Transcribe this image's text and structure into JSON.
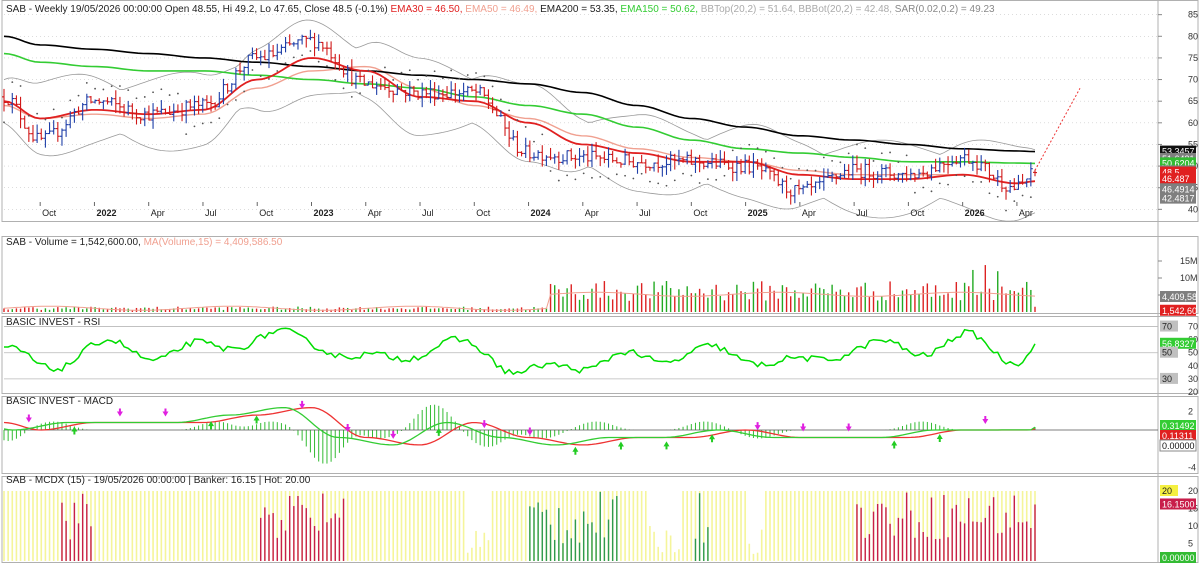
{
  "colors": {
    "background": "#ffffff",
    "grid": "#c8c8c8",
    "up_bar": "#1f3fa8",
    "down_bar": "#d01818",
    "ema30": "#e02020",
    "ema50": "#f0a090",
    "ema200": "#000000",
    "ema150": "#33cc33",
    "bollinger": "#9a9a9a",
    "sar": "#555555",
    "projection": "#ee3333",
    "vol_up": "#22aa22",
    "vol_down": "#dd2222",
    "vol_ma": "#f0a090",
    "rsi": "#00dd00",
    "macd": "#33cc33",
    "signal": "#ee3333",
    "macd_hist": "#33bb33",
    "arrow_buy": "#22cc22",
    "arrow_sell": "#e020e0",
    "mcdx_yellow": "#f5f59a",
    "mcdx_red": "#c81e4a",
    "mcdx_green": "#2e9a4e",
    "badge_gray": "#7f7f7f"
  },
  "price_panel": {
    "header": {
      "main": "SAB - Weekly 19/05/2026 00:00:00 Open 48.55, Hi 49.2, Lo 47.65, Close 48.5 (-0.1%) ",
      "ema30": "EMA30 = 46.50,",
      "ema50": " EMA50 = 46.49,",
      "ema200": " EMA200 = 53.35,",
      "ema150": " EMA150 = 50.62,",
      "bbtop": " BBTop(20,2) = 51.64,",
      "bbbot": " BBBot(20,2) = 42.48,",
      "sar": " SAR(0.02,0.2) = 49.23"
    },
    "y_ticks": [
      "85",
      "80",
      "75",
      "70",
      "65",
      "60",
      "55",
      "50",
      "45",
      "40"
    ],
    "x_labels": [
      "Oct",
      "2022",
      "Apr",
      "Jul",
      "Oct",
      "2023",
      "Apr",
      "Jul",
      "Oct",
      "2024",
      "Apr",
      "Jul",
      "Oct",
      "2025",
      "Apr",
      "Jul",
      "Oct",
      "2026",
      "Apr"
    ],
    "badges": [
      "53.3457",
      "51.6431",
      "50.6204",
      "49.2296",
      "48.5",
      "46.487",
      "46.4914",
      "42.4817"
    ]
  },
  "volume_panel": {
    "header": {
      "main": "SAB - Volume = 1,542,600.00, ",
      "ma": "MA(Volume,15) = 4,409,586.50"
    },
    "y_ticks": [
      "15M",
      "10M",
      "5M"
    ],
    "badges": [
      "4,409,58",
      "1,542,60"
    ]
  },
  "rsi_panel": {
    "header": "BASIC INVEST - RSI",
    "y_ticks": [
      "70",
      "60",
      "50",
      "40",
      "30",
      "20"
    ],
    "badges": [
      "70",
      "56.8327",
      "50",
      "30"
    ]
  },
  "macd_panel": {
    "header": "BASIC INVEST - MACD",
    "y_ticks": [
      "2",
      "0",
      "-2",
      "-4"
    ],
    "badges": [
      "0.31492",
      "0.11311",
      "0.00000"
    ]
  },
  "mcdx_panel": {
    "header": "SAB - MCDX (15) - 19/05/2026 00:00:00 | Banker: 16.15 | Hot: 20.00",
    "y_ticks": [
      "20",
      "15",
      "10",
      "5"
    ],
    "badges": [
      "20",
      "16.1500",
      "0.00000"
    ]
  },
  "chart_data": {
    "type": "candlestick",
    "ticker": "SAB",
    "timeframe": "Weekly",
    "last_bar": {
      "date": "19/05/2026",
      "open": 48.55,
      "high": 49.2,
      "low": 47.65,
      "close": 48.5,
      "change_pct": -0.1
    },
    "x_range": [
      "2021-08",
      "2026-05"
    ],
    "ylim": [
      38,
      87
    ],
    "anchors": {
      "dates": [
        "2021-08",
        "2021-10",
        "2022-01",
        "2022-04",
        "2022-07",
        "2022-10",
        "2023-01",
        "2023-04",
        "2023-07",
        "2023-10",
        "2024-01",
        "2024-04",
        "2024-07",
        "2024-10",
        "2025-01",
        "2025-04",
        "2025-07",
        "2025-10",
        "2026-01",
        "2026-04",
        "2026-05"
      ],
      "close": [
        66,
        56,
        65,
        62,
        64,
        75,
        79,
        69,
        67,
        67,
        53,
        52,
        51,
        51,
        50,
        44,
        49,
        48,
        52,
        45,
        48.5
      ],
      "ema30": [
        65,
        61,
        63,
        62,
        63,
        70,
        75,
        72,
        66,
        65,
        60,
        55,
        53,
        51,
        51,
        48,
        47,
        47,
        48,
        46,
        46.5
      ],
      "ema50": [
        64,
        61,
        62,
        61,
        62,
        68,
        72,
        73,
        68,
        64,
        61,
        57,
        54,
        52,
        51,
        49,
        48,
        48,
        48,
        46,
        46.49
      ],
      "ema200": [
        80,
        78,
        77,
        76,
        75,
        74,
        73,
        72,
        71,
        70,
        69,
        67,
        64,
        61,
        59,
        57,
        56,
        55,
        54,
        53.5,
        53.35
      ],
      "ema150": [
        76,
        74,
        73,
        72,
        72,
        71,
        70,
        69,
        68,
        66,
        64,
        62,
        59,
        56,
        54,
        53,
        52,
        51,
        51,
        50.7,
        50.62
      ]
    },
    "indicators": {
      "ema30": 46.5,
      "ema50": 46.49,
      "ema200": 53.35,
      "ema150": 50.62,
      "bb_top": 51.64,
      "bb_bot": 42.48,
      "sar": 49.23,
      "volume": 1542600,
      "volume_ma15": 4409586.5,
      "rsi": 56.8327,
      "macd": 0.31492,
      "macd_signal": 0.11311,
      "mcdx_banker": 16.15,
      "mcdx_hot": 20.0
    },
    "volume_ylim": [
      0,
      20000000
    ],
    "rsi_ylim": [
      20,
      75
    ],
    "macd_ylim": [
      -4.5,
      3
    ],
    "mcdx_ylim": [
      0,
      22
    ]
  }
}
